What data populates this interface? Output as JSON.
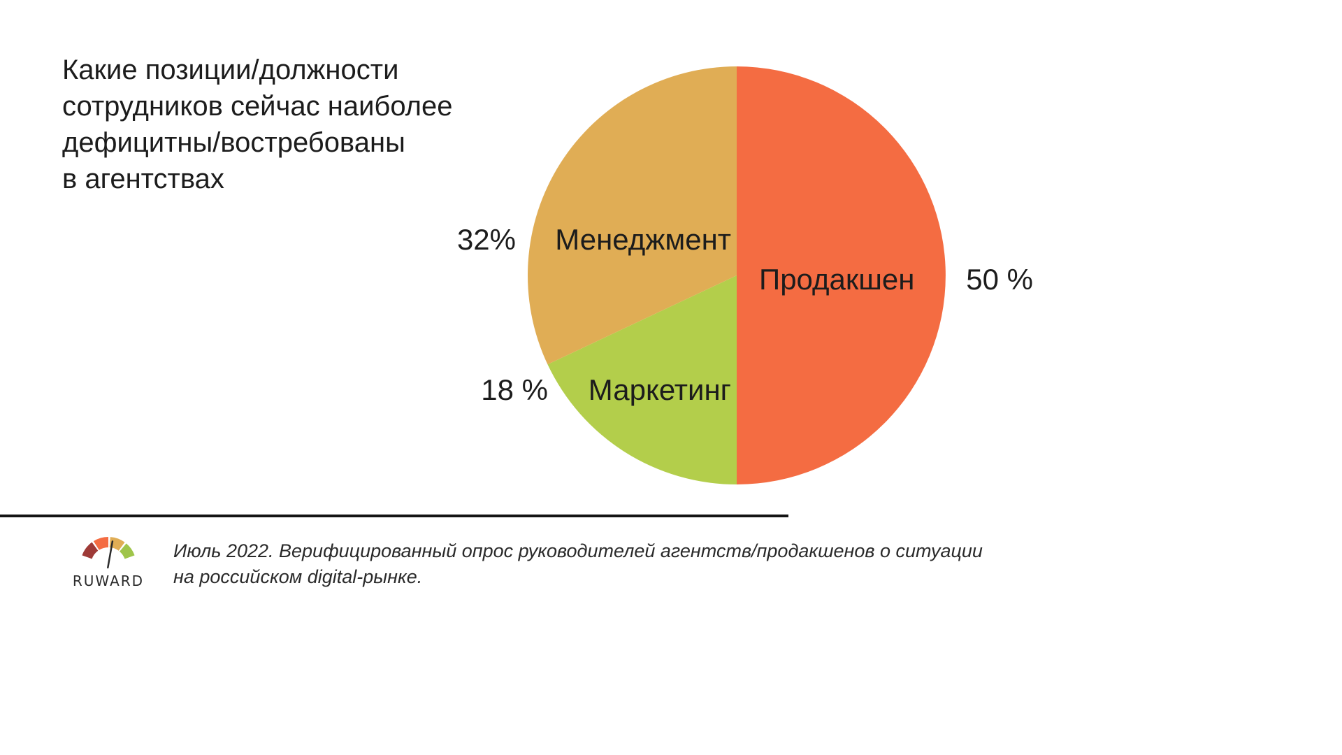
{
  "title": "Какие позиции/должности\nсотрудников сейчас наиболее\nдефицитны/востребованы\nв агентствах",
  "chart_data": {
    "type": "pie",
    "title": "Какие позиции/должности сотрудников сейчас наиболее дефицитны/востребованы в агентствах",
    "slices": [
      {
        "label": "Продакшен",
        "value": 50,
        "value_text": "50 %",
        "color": "#f46c42"
      },
      {
        "label": "Маркетинг",
        "value": 18,
        "value_text": "18 %",
        "color": "#b3ce4b"
      },
      {
        "label": "Менеджмент",
        "value": 32,
        "value_text": "32%",
        "color": "#e0ad55"
      }
    ],
    "start": "12 o'clock",
    "direction": "clockwise",
    "legend": "none"
  },
  "footer": {
    "logo_text": "RUWARD",
    "logo_colors": [
      "#9e3a37",
      "#f46c42",
      "#e0ad55",
      "#9fc54a"
    ],
    "note": "Июль 2022. Верифицированный опрос руководителей агентств/продакшенов о ситуации\nна российском digital-рынке."
  }
}
